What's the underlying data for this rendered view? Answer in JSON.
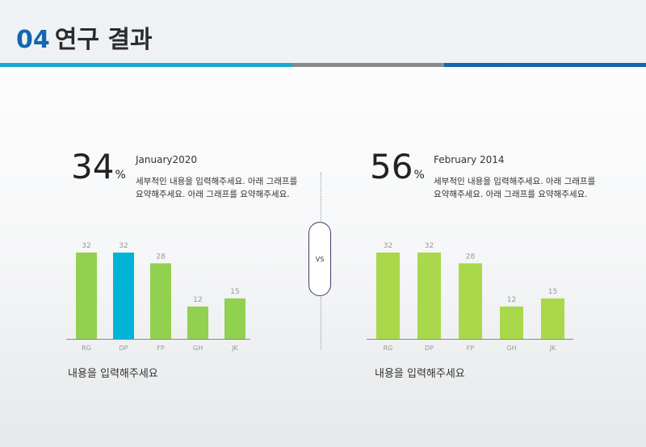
{
  "header": {
    "number": "04",
    "title": "연구 결과"
  },
  "colors": {
    "accent_blue": "#1565b0",
    "bar_green": "#92d050",
    "bar_highlight": "#00b4d8",
    "bar_green_light": "#a9d94a"
  },
  "vs_label": "VS",
  "left": {
    "big_value": "34",
    "unit": "%",
    "subtitle": "January2020",
    "desc_lines": [
      "세부적인 내용을 입력해주세요. 아래  그래프를",
      "요약해주세요. 아래  그래프를 요약해주세요."
    ],
    "footer": "내용을 입력해주세요"
  },
  "right": {
    "big_value": "56",
    "unit": "%",
    "subtitle": "February 2014",
    "desc_lines": [
      "세부적인 내용을 입력해주세요. 아래  그래프를",
      "요약해주세요. 아래  그래프를 요약해주세요."
    ],
    "footer": "내용을 입력해주세요"
  },
  "chart_data": [
    {
      "type": "bar",
      "categories": [
        "RG",
        "DP",
        "FP",
        "GH",
        "JK"
      ],
      "values": [
        32,
        32,
        28,
        12,
        15
      ],
      "highlight_index": 1,
      "ylim": [
        0,
        32
      ],
      "grid": false
    },
    {
      "type": "bar",
      "categories": [
        "RG",
        "DP",
        "FP",
        "GH",
        "JK"
      ],
      "values": [
        32,
        32,
        28,
        12,
        15
      ],
      "ylim": [
        0,
        32
      ],
      "grid": false
    }
  ]
}
